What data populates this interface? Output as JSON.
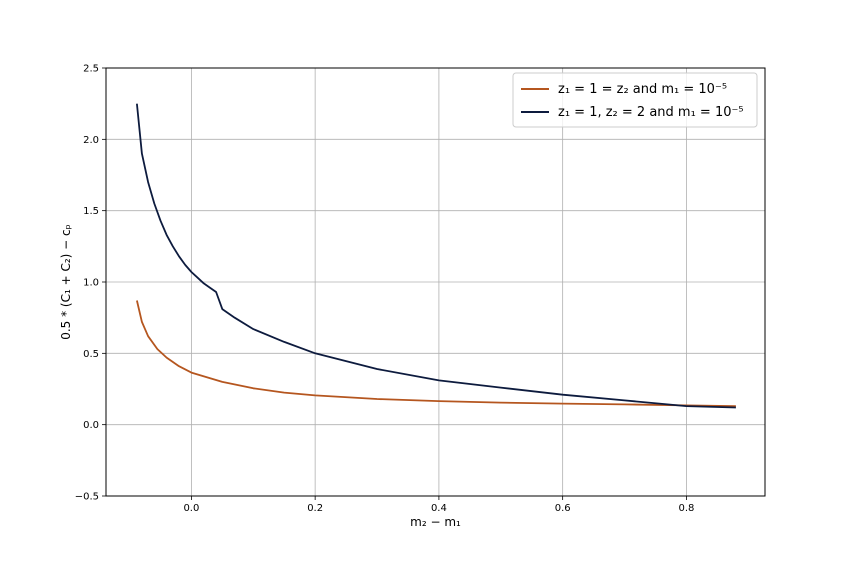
{
  "chart_data": {
    "type": "line",
    "title": "",
    "xlabel": "m₂ − m₁",
    "ylabel": "0.5 * (C₁ + C₂) − cₚ",
    "xlim": [
      -0.138,
      0.927
    ],
    "ylim": [
      -0.5,
      2.5
    ],
    "xticks": [
      0.0,
      0.2,
      0.4,
      0.6,
      0.8
    ],
    "xtick_labels": [
      "0.0",
      "0.2",
      "0.4",
      "0.6",
      "0.8"
    ],
    "yticks": [
      -0.5,
      0.0,
      0.5,
      1.0,
      1.5,
      2.0,
      2.5
    ],
    "ytick_labels": [
      "−0.5",
      "0.0",
      "0.5",
      "1.0",
      "1.5",
      "2.0",
      "2.5"
    ],
    "grid": true,
    "legend_position": "top-right",
    "series": [
      {
        "name": "z₁ = 1 = z₂ and m₁ = 10⁻⁵",
        "color": "#b5561f",
        "x": [
          -0.088,
          -0.08,
          -0.07,
          -0.055,
          -0.04,
          -0.02,
          0.0,
          0.05,
          0.1,
          0.15,
          0.2,
          0.3,
          0.4,
          0.5,
          0.6,
          0.7,
          0.8,
          0.88
        ],
        "y": [
          0.87,
          0.72,
          0.62,
          0.53,
          0.47,
          0.41,
          0.365,
          0.3,
          0.255,
          0.225,
          0.205,
          0.18,
          0.165,
          0.155,
          0.148,
          0.142,
          0.135,
          0.13
        ]
      },
      {
        "name": "z₁ = 1, z₂ = 2 and m₁ = 10⁻⁵",
        "color": "#0d1b3e",
        "x": [
          -0.088,
          -0.08,
          -0.07,
          -0.06,
          -0.05,
          -0.04,
          -0.03,
          -0.02,
          -0.01,
          0.0,
          0.01,
          0.02,
          0.03,
          0.04,
          0.05,
          0.07,
          0.1,
          0.15,
          0.2,
          0.3,
          0.4,
          0.5,
          0.6,
          0.7,
          0.8,
          0.88
        ],
        "y": [
          2.25,
          1.9,
          1.7,
          1.55,
          1.43,
          1.33,
          1.25,
          1.18,
          1.12,
          1.07,
          1.03,
          0.99,
          0.96,
          0.93,
          0.81,
          0.75,
          0.67,
          0.58,
          0.5,
          0.39,
          0.31,
          0.26,
          0.21,
          0.17,
          0.13,
          0.12
        ]
      }
    ]
  }
}
